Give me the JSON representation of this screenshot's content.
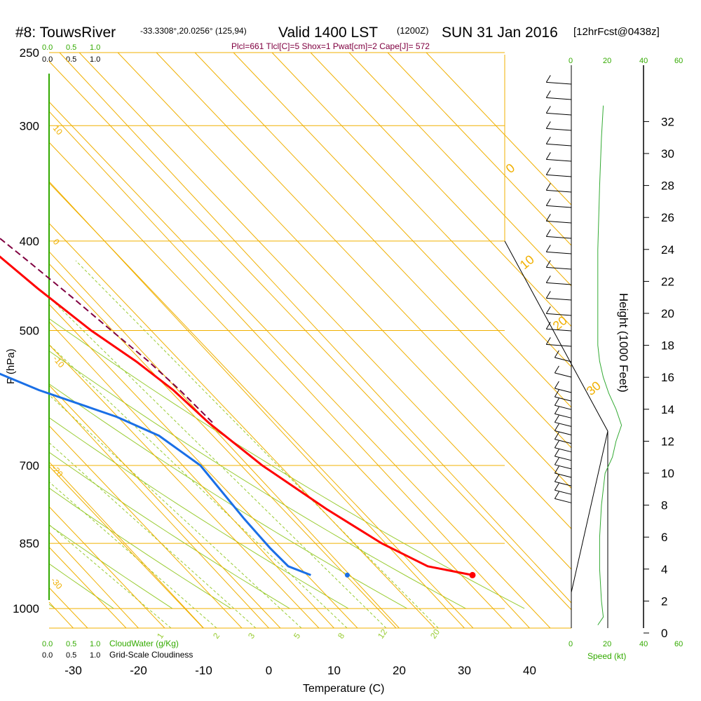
{
  "header": {
    "site": "#8: TouwsRiver",
    "coords": "-33.3308°,20.0256° (125,94)",
    "valid": "Valid 1400 LST",
    "utc": "(1200Z)",
    "date": "SUN 31 Jan 2016",
    "forecast": "[12hrFcst@0438z]",
    "indices": "Plcl=661 Tlcl[C]=5 Shox=1 Pwat[cm]=2 Cape[J]= 572"
  },
  "scales": {
    "cloudwater_ticks": [
      "0.0",
      "0.5",
      "1.0"
    ],
    "cloudiness_ticks": [
      "0.0",
      "0.5",
      "1.0"
    ],
    "cloudwater_label": "CloudWater (g/Kg)",
    "cloudiness_label": "Grid-Scale Cloudiness",
    "speed_ticks": [
      "0",
      "20",
      "40",
      "60"
    ],
    "speed_ticks_inner": [
      "0",
      "20"
    ],
    "speed_label": "Speed (kt)"
  },
  "colors": {
    "isotherm": "#f0b000",
    "mixing": "#99cc33",
    "temperature": "#ff0000",
    "dewpoint": "#1a6fe6",
    "parcel": "#800040",
    "green_label": "#33aa00",
    "speed_line": "#33aa33"
  },
  "chart_data": {
    "type": "skew-t",
    "xlabel": "Temperature (C)",
    "ylabel": "P (hPa)",
    "y2label": "Height (1000 Feet)",
    "x_ticks": [
      -30,
      -20,
      -10,
      0,
      10,
      20,
      30,
      40
    ],
    "pressure_ticks": [
      250,
      300,
      400,
      500,
      700,
      850,
      1000
    ],
    "height_ticks": [
      0,
      2,
      4,
      6,
      8,
      10,
      12,
      14,
      16,
      18,
      20,
      22,
      24,
      26,
      28,
      30,
      32
    ],
    "isotherm_labels": [
      {
        "t": 10,
        "p": 300,
        "text": "10"
      },
      {
        "t": 0,
        "p": 400,
        "text": "0"
      },
      {
        "t": -10,
        "p": 510,
        "text": "-10"
      },
      {
        "t": -20,
        "p": 680,
        "text": "-20"
      },
      {
        "t": -30,
        "p": 880,
        "text": "-30"
      },
      {
        "t": 0,
        "p": 340,
        "text": "0"
      },
      {
        "t": 10,
        "p": 420,
        "text": "10"
      },
      {
        "t": 20,
        "p": 475,
        "text": "20"
      },
      {
        "t": 30,
        "p": 555,
        "text": "30"
      }
    ],
    "mixing_ratio_labels": [
      "1",
      "2",
      "3",
      "5",
      "8",
      "12",
      "20"
    ],
    "temperature": [
      {
        "p": 270,
        "t": 4.6
      },
      {
        "p": 285,
        "t": 5.8
      },
      {
        "p": 300,
        "t": 6.8
      },
      {
        "p": 330,
        "t": 7.8
      },
      {
        "p": 370,
        "t": 9.4
      },
      {
        "p": 400,
        "t": 11.1
      },
      {
        "p": 450,
        "t": 13.0
      },
      {
        "p": 500,
        "t": 15.2
      },
      {
        "p": 540,
        "t": 17.7
      },
      {
        "p": 580,
        "t": 19.3
      },
      {
        "p": 630,
        "t": 20.1
      },
      {
        "p": 700,
        "t": 22.2
      },
      {
        "p": 780,
        "t": 25.8
      },
      {
        "p": 850,
        "t": 29.4
      },
      {
        "p": 900,
        "t": 33.2
      },
      {
        "p": 920,
        "t": 38.8
      }
    ],
    "dewpoint": [
      {
        "p": 270,
        "t": -8.0
      },
      {
        "p": 300,
        "t": -8.2
      },
      {
        "p": 320,
        "t": -8.9
      },
      {
        "p": 340,
        "t": -10.0
      },
      {
        "p": 360,
        "t": -10.5
      },
      {
        "p": 380,
        "t": -10.1
      },
      {
        "p": 400,
        "t": -9.0
      },
      {
        "p": 430,
        "t": -7.2
      },
      {
        "p": 470,
        "t": -7.2
      },
      {
        "p": 505,
        "t": -8.6
      },
      {
        "p": 550,
        "t": -6.1
      },
      {
        "p": 580,
        "t": -1.3
      },
      {
        "p": 620,
        "t": 6.8
      },
      {
        "p": 650,
        "t": 10.6
      },
      {
        "p": 700,
        "t": 12.7
      },
      {
        "p": 800,
        "t": 11.8
      },
      {
        "p": 860,
        "t": 11.6
      },
      {
        "p": 900,
        "t": 11.8
      },
      {
        "p": 920,
        "t": 14.0
      }
    ],
    "parcel": [
      {
        "p": 270,
        "t": 5.4
      },
      {
        "p": 300,
        "t": 8.6
      },
      {
        "p": 340,
        "t": 11.5
      },
      {
        "p": 380,
        "t": 13.5
      },
      {
        "p": 420,
        "t": 15.4
      },
      {
        "p": 460,
        "t": 17.0
      },
      {
        "p": 500,
        "t": 18.3
      },
      {
        "p": 540,
        "t": 19.6
      },
      {
        "p": 580,
        "t": 20.3
      },
      {
        "p": 630,
        "t": 20.7
      }
    ],
    "surface_dewpoint_marker": {
      "p": 920,
      "t": 19.6
    },
    "surface_temperature_marker": {
      "p": 920,
      "t": 38.8
    },
    "wind_speed_profile": [
      {
        "h": 0.5,
        "kt": 3
      },
      {
        "h": 1,
        "kt": 6
      },
      {
        "h": 2,
        "kt": 5
      },
      {
        "h": 4,
        "kt": 4
      },
      {
        "h": 6,
        "kt": 4
      },
      {
        "h": 8,
        "kt": 5
      },
      {
        "h": 10,
        "kt": 7
      },
      {
        "h": 11,
        "kt": 11
      },
      {
        "h": 12,
        "kt": 13
      },
      {
        "h": 13,
        "kt": 16
      },
      {
        "h": 14,
        "kt": 13
      },
      {
        "h": 15,
        "kt": 9
      },
      {
        "h": 16,
        "kt": 6
      },
      {
        "h": 17,
        "kt": 4
      },
      {
        "h": 18,
        "kt": 3
      },
      {
        "h": 20,
        "kt": 3
      },
      {
        "h": 24,
        "kt": 3
      },
      {
        "h": 28,
        "kt": 4
      },
      {
        "h": 31,
        "kt": 5
      },
      {
        "h": 33,
        "kt": 6
      }
    ]
  }
}
